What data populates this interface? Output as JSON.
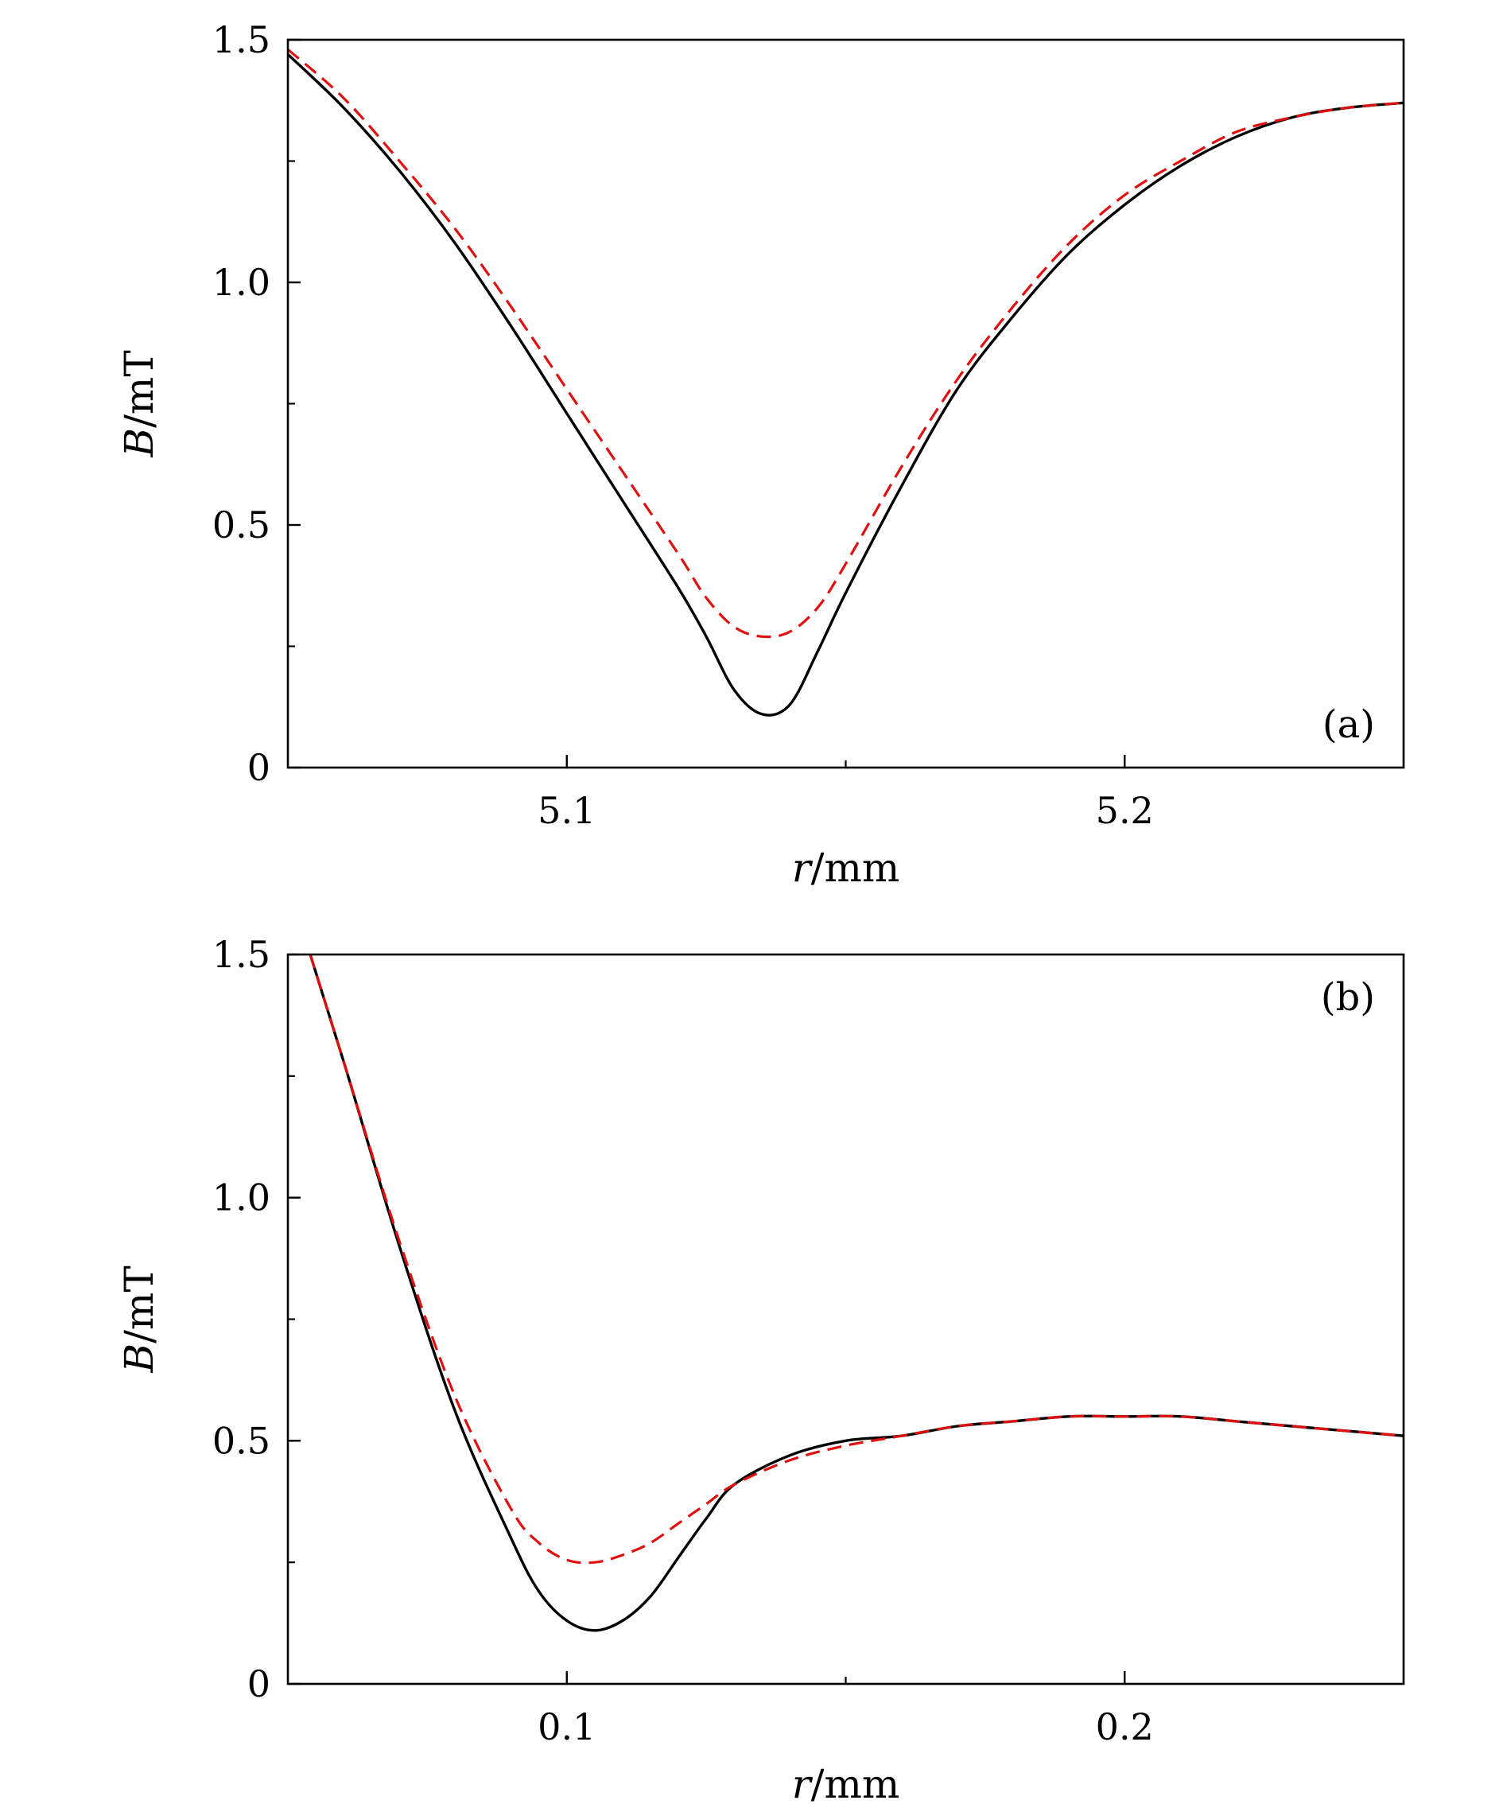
{
  "chart_data": [
    {
      "type": "line",
      "panel_label": "(a)",
      "xlabel_var": "r",
      "xlabel_unit": "/mm",
      "ylabel_var": "B",
      "ylabel_unit": "/mT",
      "xlim": [
        5.05,
        5.25
      ],
      "ylim": [
        0,
        1.5
      ],
      "x_ticks": [
        5.1,
        5.2
      ],
      "x_tick_labels": [
        "5.1",
        "5.2"
      ],
      "x_minor_ticks": [
        5.15
      ],
      "y_ticks": [
        0,
        0.5,
        1.0,
        1.5
      ],
      "y_tick_labels": [
        "0",
        "0.5",
        "1.0",
        "1.5"
      ],
      "y_minor_ticks": [
        0.25,
        0.75,
        1.25
      ],
      "grid": false,
      "series": [
        {
          "style": "solid",
          "color": "#000000",
          "x": [
            5.05,
            5.06,
            5.07,
            5.08,
            5.09,
            5.1,
            5.11,
            5.12,
            5.125,
            5.13,
            5.135,
            5.14,
            5.145,
            5.15,
            5.16,
            5.17,
            5.18,
            5.19,
            5.2,
            5.21,
            5.22,
            5.23,
            5.24,
            5.25
          ],
          "y": [
            1.47,
            1.36,
            1.23,
            1.08,
            0.91,
            0.73,
            0.55,
            0.37,
            0.27,
            0.16,
            0.11,
            0.13,
            0.24,
            0.36,
            0.58,
            0.78,
            0.93,
            1.06,
            1.16,
            1.24,
            1.3,
            1.34,
            1.36,
            1.37
          ]
        },
        {
          "style": "dashed",
          "color": "#e01010",
          "x": [
            5.05,
            5.06,
            5.07,
            5.08,
            5.09,
            5.1,
            5.11,
            5.12,
            5.125,
            5.13,
            5.135,
            5.14,
            5.145,
            5.15,
            5.16,
            5.17,
            5.18,
            5.19,
            5.2,
            5.21,
            5.22,
            5.23,
            5.24,
            5.25
          ],
          "y": [
            1.48,
            1.38,
            1.25,
            1.11,
            0.95,
            0.78,
            0.61,
            0.44,
            0.35,
            0.29,
            0.27,
            0.28,
            0.33,
            0.42,
            0.62,
            0.8,
            0.95,
            1.08,
            1.18,
            1.25,
            1.31,
            1.34,
            1.36,
            1.37
          ]
        }
      ]
    },
    {
      "type": "line",
      "panel_label": "(b)",
      "xlabel_var": "r",
      "xlabel_unit": "/mm",
      "ylabel_var": "B",
      "ylabel_unit": "/mT",
      "xlim": [
        0.05,
        0.25
      ],
      "ylim": [
        0,
        1.5
      ],
      "x_ticks": [
        0.1,
        0.2
      ],
      "x_tick_labels": [
        "0.1",
        "0.2"
      ],
      "x_minor_ticks": [
        0.15
      ],
      "y_ticks": [
        0,
        0.5,
        1.0,
        1.5
      ],
      "y_tick_labels": [
        "0",
        "0.5",
        "1.0",
        "1.5"
      ],
      "y_minor_ticks": [
        0.25,
        0.75,
        1.25
      ],
      "grid": false,
      "series": [
        {
          "style": "solid",
          "color": "#000000",
          "x": [
            0.054,
            0.06,
            0.07,
            0.08,
            0.09,
            0.095,
            0.1,
            0.105,
            0.11,
            0.115,
            0.12,
            0.125,
            0.13,
            0.14,
            0.15,
            0.16,
            0.17,
            0.18,
            0.19,
            0.2,
            0.21,
            0.22,
            0.23,
            0.24,
            0.25
          ],
          "y": [
            1.5,
            1.28,
            0.9,
            0.56,
            0.3,
            0.19,
            0.13,
            0.11,
            0.13,
            0.18,
            0.26,
            0.34,
            0.41,
            0.47,
            0.5,
            0.51,
            0.53,
            0.54,
            0.55,
            0.55,
            0.55,
            0.54,
            0.53,
            0.52,
            0.51
          ]
        },
        {
          "style": "dashed",
          "color": "#e01010",
          "x": [
            0.054,
            0.06,
            0.07,
            0.08,
            0.09,
            0.095,
            0.1,
            0.105,
            0.11,
            0.115,
            0.12,
            0.125,
            0.13,
            0.14,
            0.15,
            0.16,
            0.17,
            0.18,
            0.19,
            0.2,
            0.21,
            0.22,
            0.23,
            0.24,
            0.25
          ],
          "y": [
            1.5,
            1.28,
            0.91,
            0.59,
            0.36,
            0.29,
            0.255,
            0.25,
            0.265,
            0.29,
            0.33,
            0.37,
            0.41,
            0.46,
            0.49,
            0.51,
            0.53,
            0.54,
            0.55,
            0.55,
            0.55,
            0.54,
            0.53,
            0.52,
            0.51
          ]
        }
      ]
    }
  ]
}
